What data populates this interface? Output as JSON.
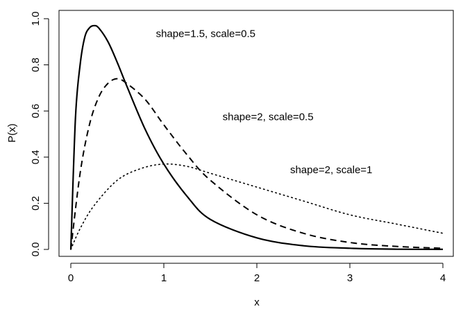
{
  "chart_data": {
    "type": "line",
    "title": "",
    "xlabel": "x",
    "ylabel": "P(x)",
    "xlim": [
      0,
      4
    ],
    "ylim": [
      0,
      1.0
    ],
    "x_ticks": [
      "0",
      "1",
      "2",
      "3",
      "4"
    ],
    "y_ticks": [
      "0.0",
      "0.2",
      "0.4",
      "0.6",
      "0.8",
      "1.0"
    ],
    "grid": false,
    "legend": "none",
    "series": [
      {
        "label": "shape=1.5, scale=0.5",
        "line_style": "solid",
        "x": [
          0,
          0.05,
          0.1,
          0.15,
          0.2,
          0.25,
          0.3,
          0.4,
          0.5,
          0.6,
          0.8,
          1.0,
          1.25,
          1.5,
          2.0,
          2.5,
          3.0,
          3.5,
          4.0
        ],
        "y": [
          0,
          0.57,
          0.8,
          0.92,
          0.96,
          0.97,
          0.96,
          0.9,
          0.81,
          0.71,
          0.52,
          0.37,
          0.23,
          0.13,
          0.05,
          0.016,
          0.005,
          0.001,
          0.0003
        ]
      },
      {
        "label": "shape=2, scale=0.5",
        "line_style": "dashed",
        "x": [
          0,
          0.1,
          0.2,
          0.3,
          0.4,
          0.5,
          0.6,
          0.8,
          1.0,
          1.25,
          1.5,
          2.0,
          2.5,
          3.0,
          3.5,
          4.0
        ],
        "y": [
          0,
          0.33,
          0.54,
          0.66,
          0.72,
          0.74,
          0.72,
          0.65,
          0.54,
          0.41,
          0.3,
          0.15,
          0.07,
          0.03,
          0.013,
          0.005
        ]
      },
      {
        "label": "shape=2, scale=1",
        "line_style": "dotted",
        "x": [
          0,
          0.1,
          0.25,
          0.5,
          0.75,
          1.0,
          1.25,
          1.5,
          2.0,
          2.5,
          3.0,
          3.5,
          4.0
        ],
        "y": [
          0,
          0.09,
          0.19,
          0.3,
          0.35,
          0.37,
          0.36,
          0.33,
          0.27,
          0.21,
          0.15,
          0.11,
          0.07
        ]
      }
    ],
    "annotations": [
      {
        "text": "shape=1.5, scale=0.5",
        "x": 1.45,
        "y": 0.92
      },
      {
        "text": "shape=2, scale=0.5",
        "x": 2.12,
        "y": 0.56
      },
      {
        "text": "shape=2, scale=1",
        "x": 2.8,
        "y": 0.33
      }
    ],
    "colors": {
      "line": "#000000",
      "axis": "#000000",
      "background": "#ffffff"
    }
  }
}
